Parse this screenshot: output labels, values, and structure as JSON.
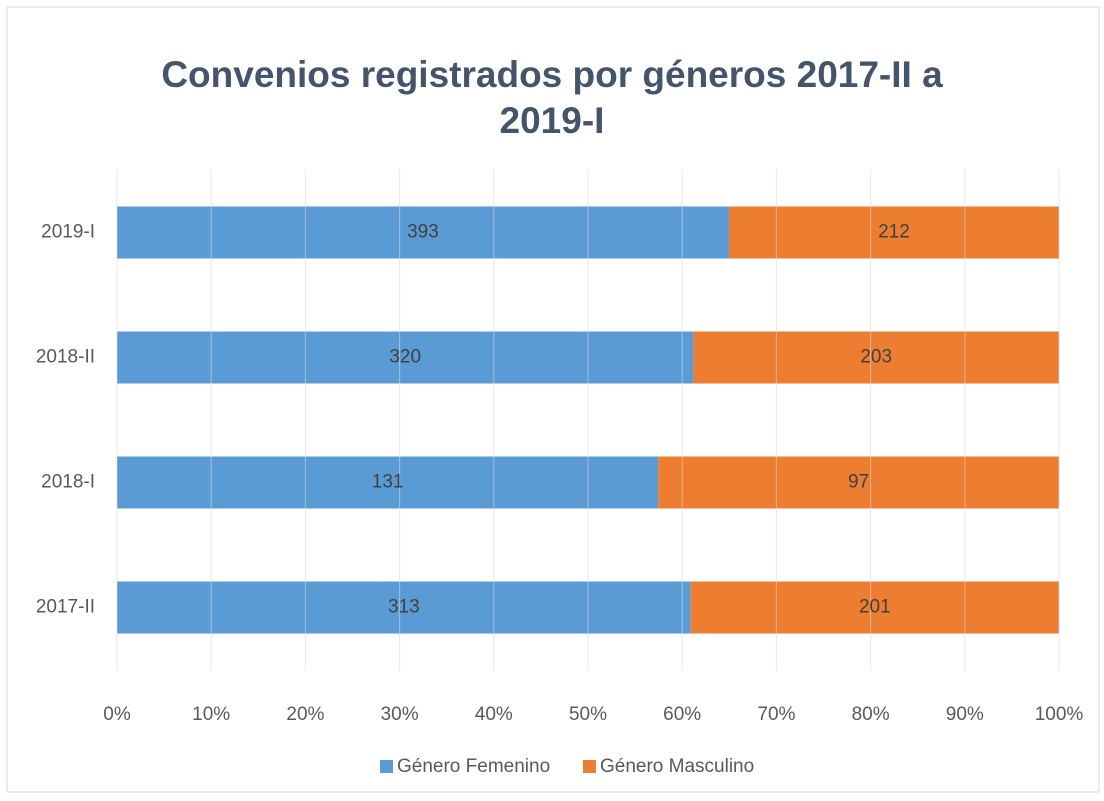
{
  "chart_data": {
    "type": "bar100h",
    "title": "Convenios registrados por géneros 2017-II a 2019-I",
    "categories": [
      "2017-II",
      "2018-I",
      "2018-II",
      "2019-I"
    ],
    "series": [
      {
        "name": "Género Femenino",
        "color": "#5b9bd5",
        "values": [
          313,
          131,
          320,
          393
        ]
      },
      {
        "name": "Género Masculino",
        "color": "#ed7d31",
        "values": [
          201,
          97,
          203,
          212
        ]
      }
    ],
    "xlim": [
      0,
      100
    ],
    "xticks": [
      {
        "value": 0,
        "label": "0%"
      },
      {
        "value": 10,
        "label": "10%"
      },
      {
        "value": 20,
        "label": "20%"
      },
      {
        "value": 30,
        "label": "30%"
      },
      {
        "value": 40,
        "label": "40%"
      },
      {
        "value": 50,
        "label": "50%"
      },
      {
        "value": 60,
        "label": "60%"
      },
      {
        "value": 70,
        "label": "70%"
      },
      {
        "value": 80,
        "label": "80%"
      },
      {
        "value": 90,
        "label": "90%"
      },
      {
        "value": 100,
        "label": "100%"
      }
    ],
    "grid": true,
    "legend": "bottom"
  }
}
